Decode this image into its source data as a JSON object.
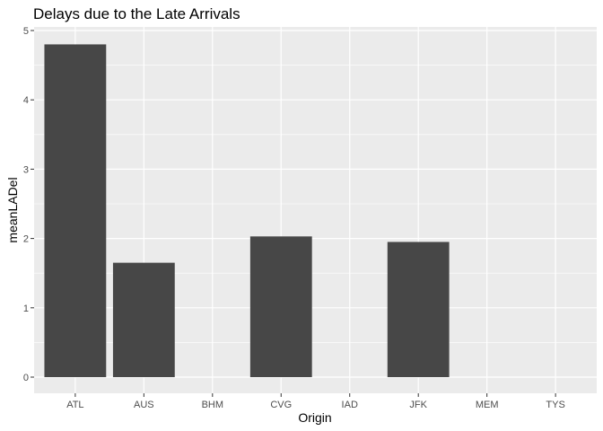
{
  "chart_data": {
    "type": "bar",
    "title": "Delays due to the Late Arrivals",
    "xlabel": "Origin",
    "ylabel": "meanLADel",
    "categories": [
      "ATL",
      "AUS",
      "BHM",
      "CVG",
      "IAD",
      "JFK",
      "MEM",
      "TYS"
    ],
    "values": [
      4.8,
      1.65,
      0,
      2.03,
      0,
      1.95,
      0,
      0
    ],
    "ylim": [
      0,
      5
    ],
    "yticks": [
      0,
      1,
      2,
      3,
      4,
      5
    ],
    "grid": true,
    "colors": {
      "panel_background": "#ebebeb",
      "grid": "#ffffff",
      "bar": "#474747"
    }
  }
}
